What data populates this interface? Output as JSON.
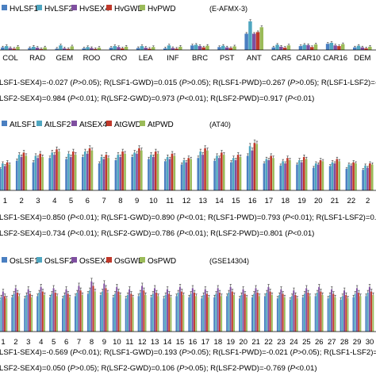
{
  "colors": {
    "LSF1": "#4a7fc1",
    "LSF2": "#4fa6c0",
    "SEX4": "#7f4fa0",
    "GWD": "#c0392b",
    "PWD": "#9bbb59"
  },
  "chart_data": [
    {
      "type": "bar",
      "dataset_label": "(E-AFMX-3)",
      "legend_position": "top-left",
      "categories": [
        "COL",
        "RAD",
        "GEM",
        "ROO",
        "CRO",
        "LEA",
        "INF",
        "BRC",
        "PST",
        "ANT",
        "CAR5",
        "CAR10",
        "CAR16",
        "DEM"
      ],
      "ylim": [
        0,
        100
      ],
      "series": [
        {
          "name": "HvLSF1",
          "values": [
            8,
            6,
            4,
            5,
            7,
            6,
            5,
            14,
            9,
            50,
            8,
            12,
            19,
            8
          ]
        },
        {
          "name": "HvLSF2",
          "values": [
            12,
            10,
            14,
            9,
            12,
            12,
            14,
            16,
            13,
            88,
            16,
            16,
            22,
            13
          ]
        },
        {
          "name": "HvSEX4",
          "values": [
            6,
            7,
            5,
            6,
            9,
            7,
            6,
            12,
            8,
            50,
            10,
            15,
            14,
            8
          ]
        },
        {
          "name": "HvGWD",
          "values": [
            4,
            3,
            3,
            3,
            5,
            4,
            4,
            8,
            6,
            55,
            7,
            9,
            12,
            5
          ]
        },
        {
          "name": "HvPWD",
          "values": [
            10,
            8,
            11,
            7,
            10,
            9,
            10,
            13,
            11,
            70,
            14,
            17,
            18,
            10
          ]
        }
      ],
      "correlations": [
        "LSF1-SEX4)=-0.027 (P>0.05); R(LSF1-GWD)=0.015 (P>0.05); R(LSF1-PWD)=0.267 (P>0.05); R(LSF1-LSF2)=-0.06",
        "LSF2-SEX4)=0.984 (P<0.01); R(LSF2-GWD)=0.973 (P<0.01); R(LSF2-PWD)=0.917 (P<0.01)"
      ]
    },
    {
      "type": "bar",
      "dataset_label": "(AT40)",
      "legend_position": "top-left",
      "categories": [
        "1",
        "2",
        "3",
        "4",
        "5",
        "6",
        "7",
        "8",
        "9",
        "10",
        "11",
        "12",
        "13",
        "14",
        "15",
        "16",
        "17",
        "18",
        "19",
        "20",
        "21",
        "22",
        "2"
      ],
      "ylim": [
        0,
        100
      ],
      "series": [
        {
          "name": "AtLSF1",
          "values": [
            40,
            55,
            52,
            60,
            58,
            62,
            50,
            56,
            62,
            58,
            54,
            48,
            60,
            55,
            52,
            64,
            50,
            46,
            48,
            42,
            45,
            40,
            38
          ]
        },
        {
          "name": "AtLSF2",
          "values": [
            50,
            66,
            64,
            70,
            68,
            72,
            62,
            66,
            70,
            66,
            62,
            56,
            72,
            64,
            60,
            82,
            58,
            54,
            56,
            50,
            52,
            48,
            46
          ]
        },
        {
          "name": "AtSEX4",
          "values": [
            45,
            62,
            60,
            66,
            62,
            68,
            58,
            62,
            68,
            62,
            58,
            52,
            66,
            60,
            56,
            74,
            56,
            50,
            52,
            48,
            50,
            46,
            42
          ]
        },
        {
          "name": "AtGWD",
          "values": [
            52,
            70,
            68,
            76,
            72,
            78,
            66,
            72,
            78,
            72,
            68,
            60,
            78,
            70,
            66,
            88,
            64,
            60,
            62,
            56,
            58,
            52,
            50
          ]
        },
        {
          "name": "AtPWD",
          "values": [
            48,
            64,
            62,
            72,
            66,
            74,
            60,
            68,
            74,
            68,
            64,
            58,
            74,
            66,
            62,
            86,
            60,
            56,
            58,
            54,
            54,
            50,
            48
          ]
        }
      ],
      "correlations": [
        "LSF1-SEX4)=0.850 (P<0.01); R(LSF1-GWD)=0.890 (P<0.01; R(LSF1-PWD)=0.793 (P<0.01); R(LSF1-LSF2)=0.836 (P",
        "LSF2-SEX4)=0.734 (P<0.01); R(LSF2-GWD)=0.786 (P<0.01); R(LSF2-PWD)=0.801 (P<0.01)"
      ]
    },
    {
      "type": "bar",
      "dataset_label": "(GSE14304)",
      "legend_position": "top-left",
      "categories": [
        "1",
        "2",
        "3",
        "4",
        "5",
        "6",
        "7",
        "8",
        "9",
        "10",
        "11",
        "12",
        "13",
        "14",
        "15",
        "16",
        "17",
        "18",
        "19",
        "20",
        "21",
        "22",
        "23",
        "24",
        "25",
        "26",
        "27",
        "28",
        "29",
        "30"
      ],
      "ylim": [
        0,
        100
      ],
      "series": [
        {
          "name": "OsLSF1",
          "values": [
            55,
            60,
            58,
            62,
            60,
            58,
            62,
            66,
            64,
            60,
            58,
            62,
            60,
            58,
            62,
            60,
            58,
            60,
            62,
            58,
            60,
            62,
            58,
            56,
            60,
            62,
            58,
            56,
            60,
            62
          ]
        },
        {
          "name": "OsLSF2",
          "values": [
            60,
            66,
            64,
            68,
            66,
            64,
            68,
            72,
            70,
            66,
            64,
            68,
            66,
            64,
            68,
            66,
            64,
            66,
            68,
            64,
            66,
            68,
            64,
            62,
            66,
            68,
            64,
            62,
            66,
            68
          ]
        },
        {
          "name": "OsSEX4",
          "values": [
            70,
            76,
            74,
            78,
            76,
            74,
            80,
            88,
            84,
            78,
            74,
            80,
            76,
            74,
            78,
            76,
            74,
            76,
            78,
            74,
            76,
            78,
            74,
            72,
            76,
            78,
            74,
            72,
            76,
            78
          ]
        },
        {
          "name": "OsGWD",
          "values": [
            62,
            68,
            66,
            70,
            68,
            66,
            72,
            80,
            76,
            70,
            66,
            72,
            68,
            66,
            70,
            68,
            66,
            68,
            70,
            66,
            68,
            70,
            66,
            64,
            68,
            70,
            66,
            64,
            68,
            70
          ]
        },
        {
          "name": "OsPWD",
          "values": [
            58,
            62,
            60,
            64,
            62,
            60,
            64,
            70,
            68,
            64,
            60,
            64,
            62,
            60,
            64,
            62,
            60,
            62,
            64,
            60,
            62,
            64,
            60,
            58,
            62,
            64,
            60,
            58,
            62,
            64
          ]
        }
      ],
      "correlations": [
        "LSF1-SEX4)=-0.569 (P<0.01); R(LSF1-GWD)=0.193 (P>0.05); R(LSF1-PWD)=-0.021 (P>0.05); R(LSF1-LSF2)=-0.24",
        "LSF2-SEX4)=0.050 (P>0.05); R(LSF2-GWD)=0.106 (P>0.05); R(LSF2-PWD)=-0.769 (P<0.01)"
      ]
    }
  ]
}
